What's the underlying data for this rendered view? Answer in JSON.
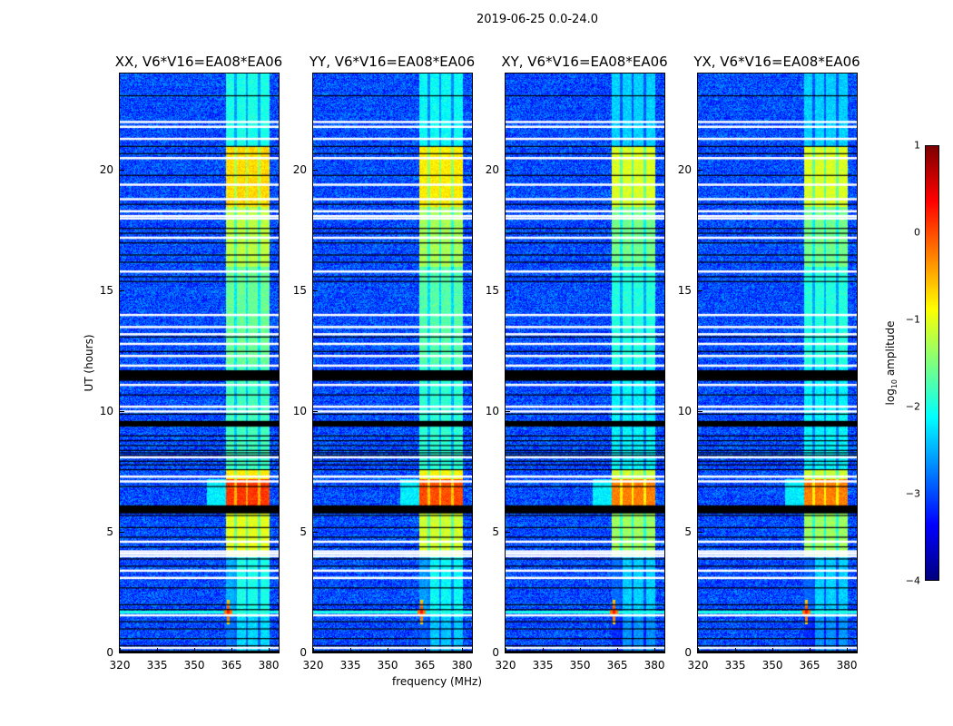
{
  "chart_data": {
    "type": "heatmap",
    "suptitle": "2019-06-25 0.0-24.0",
    "xlabel": "frequency (MHz)",
    "ylabel": "UT (hours)",
    "xlim": [
      320,
      384
    ],
    "ylim": [
      0,
      24
    ],
    "xticks": [
      "320",
      "335",
      "350",
      "365",
      "380"
    ],
    "xtick_values": [
      320,
      335,
      350,
      365,
      380
    ],
    "yticks": [
      "0",
      "5",
      "10",
      "15",
      "20"
    ],
    "ytick_values": [
      0,
      5,
      10,
      15,
      20
    ],
    "colormap": "jet",
    "colorbar": {
      "label": "log10 amplitude",
      "label_main": "log",
      "label_sub": "10",
      "label_rest": " amplitude",
      "range": [
        -4,
        1
      ],
      "ticks": [
        "1",
        "0",
        "−1",
        "−2",
        "−3",
        "−4"
      ],
      "tick_values": [
        1,
        0,
        -1,
        -2,
        -3,
        -4
      ]
    },
    "panels": [
      {
        "title": "XX, V6*V16=EA08*EA06",
        "offset": 0.0
      },
      {
        "title": "YY, V6*V16=EA08*EA06",
        "offset": -0.1
      },
      {
        "title": "XY, V6*V16=EA08*EA06",
        "offset": -0.35
      },
      {
        "title": "YX, V6*V16=EA08*EA06",
        "offset": -0.35
      }
    ],
    "rfi_band_mhz": [
      362.5,
      380
    ],
    "band_gaps_mhz": [
      366.5,
      371,
      376
    ],
    "background_level": -3.0,
    "band_levels": [
      {
        "t": [
          0,
          1.5
        ],
        "v": -2.3
      },
      {
        "t": [
          1.5,
          4
        ],
        "v": -2.0
      },
      {
        "t": [
          4,
          6
        ],
        "v": -1.0
      },
      {
        "t": [
          6,
          7.2
        ],
        "v": 0.1
      },
      {
        "t": [
          7.2,
          7.6
        ],
        "v": -0.8
      },
      {
        "t": [
          7.6,
          12
        ],
        "v": -1.8
      },
      {
        "t": [
          12,
          16
        ],
        "v": -1.6
      },
      {
        "t": [
          16,
          18.5
        ],
        "v": -1.2
      },
      {
        "t": [
          18.5,
          21
        ],
        "v": -0.7
      },
      {
        "t": [
          21,
          24
        ],
        "v": -2.0
      }
    ],
    "flagged_white_hours": [
      22.0,
      21.8,
      21.3,
      20.5,
      19.4,
      18.8,
      18.3,
      18.1,
      18.0,
      17.2,
      15.8,
      14.0,
      13.5,
      13.2,
      12.8,
      12.3,
      11.9,
      11.1,
      10.2,
      10.0,
      8.1,
      7.3,
      7.1,
      4.6,
      4.2,
      4.1,
      4.0,
      3.4,
      3.1,
      1.55,
      0.2
    ],
    "black_bands_hours": [
      [
        11.3,
        11.7
      ],
      [
        9.4,
        9.6
      ],
      [
        5.8,
        6.1
      ],
      [
        0.0,
        0.08
      ]
    ],
    "black_lines_hours": [
      23.1,
      21.0,
      20.7,
      19.8,
      18.6,
      17.6,
      17.4,
      17.0,
      16.5,
      16.2,
      15.6,
      15.4,
      13.1,
      12.5,
      10.7,
      9.9,
      9.0,
      8.8,
      8.6,
      8.4,
      8.3,
      8.2,
      7.95,
      7.8,
      7.6,
      6.9,
      5.7,
      5.2,
      4.8,
      4.4,
      3.9,
      3.6,
      2.7,
      2.0,
      1.8,
      1.3,
      1.0,
      0.6,
      0.3
    ],
    "rfi_spike": {
      "mhz": 363.5,
      "hour": 1.7,
      "value": 0.3
    },
    "rfi_line_hour": 1.7
  }
}
